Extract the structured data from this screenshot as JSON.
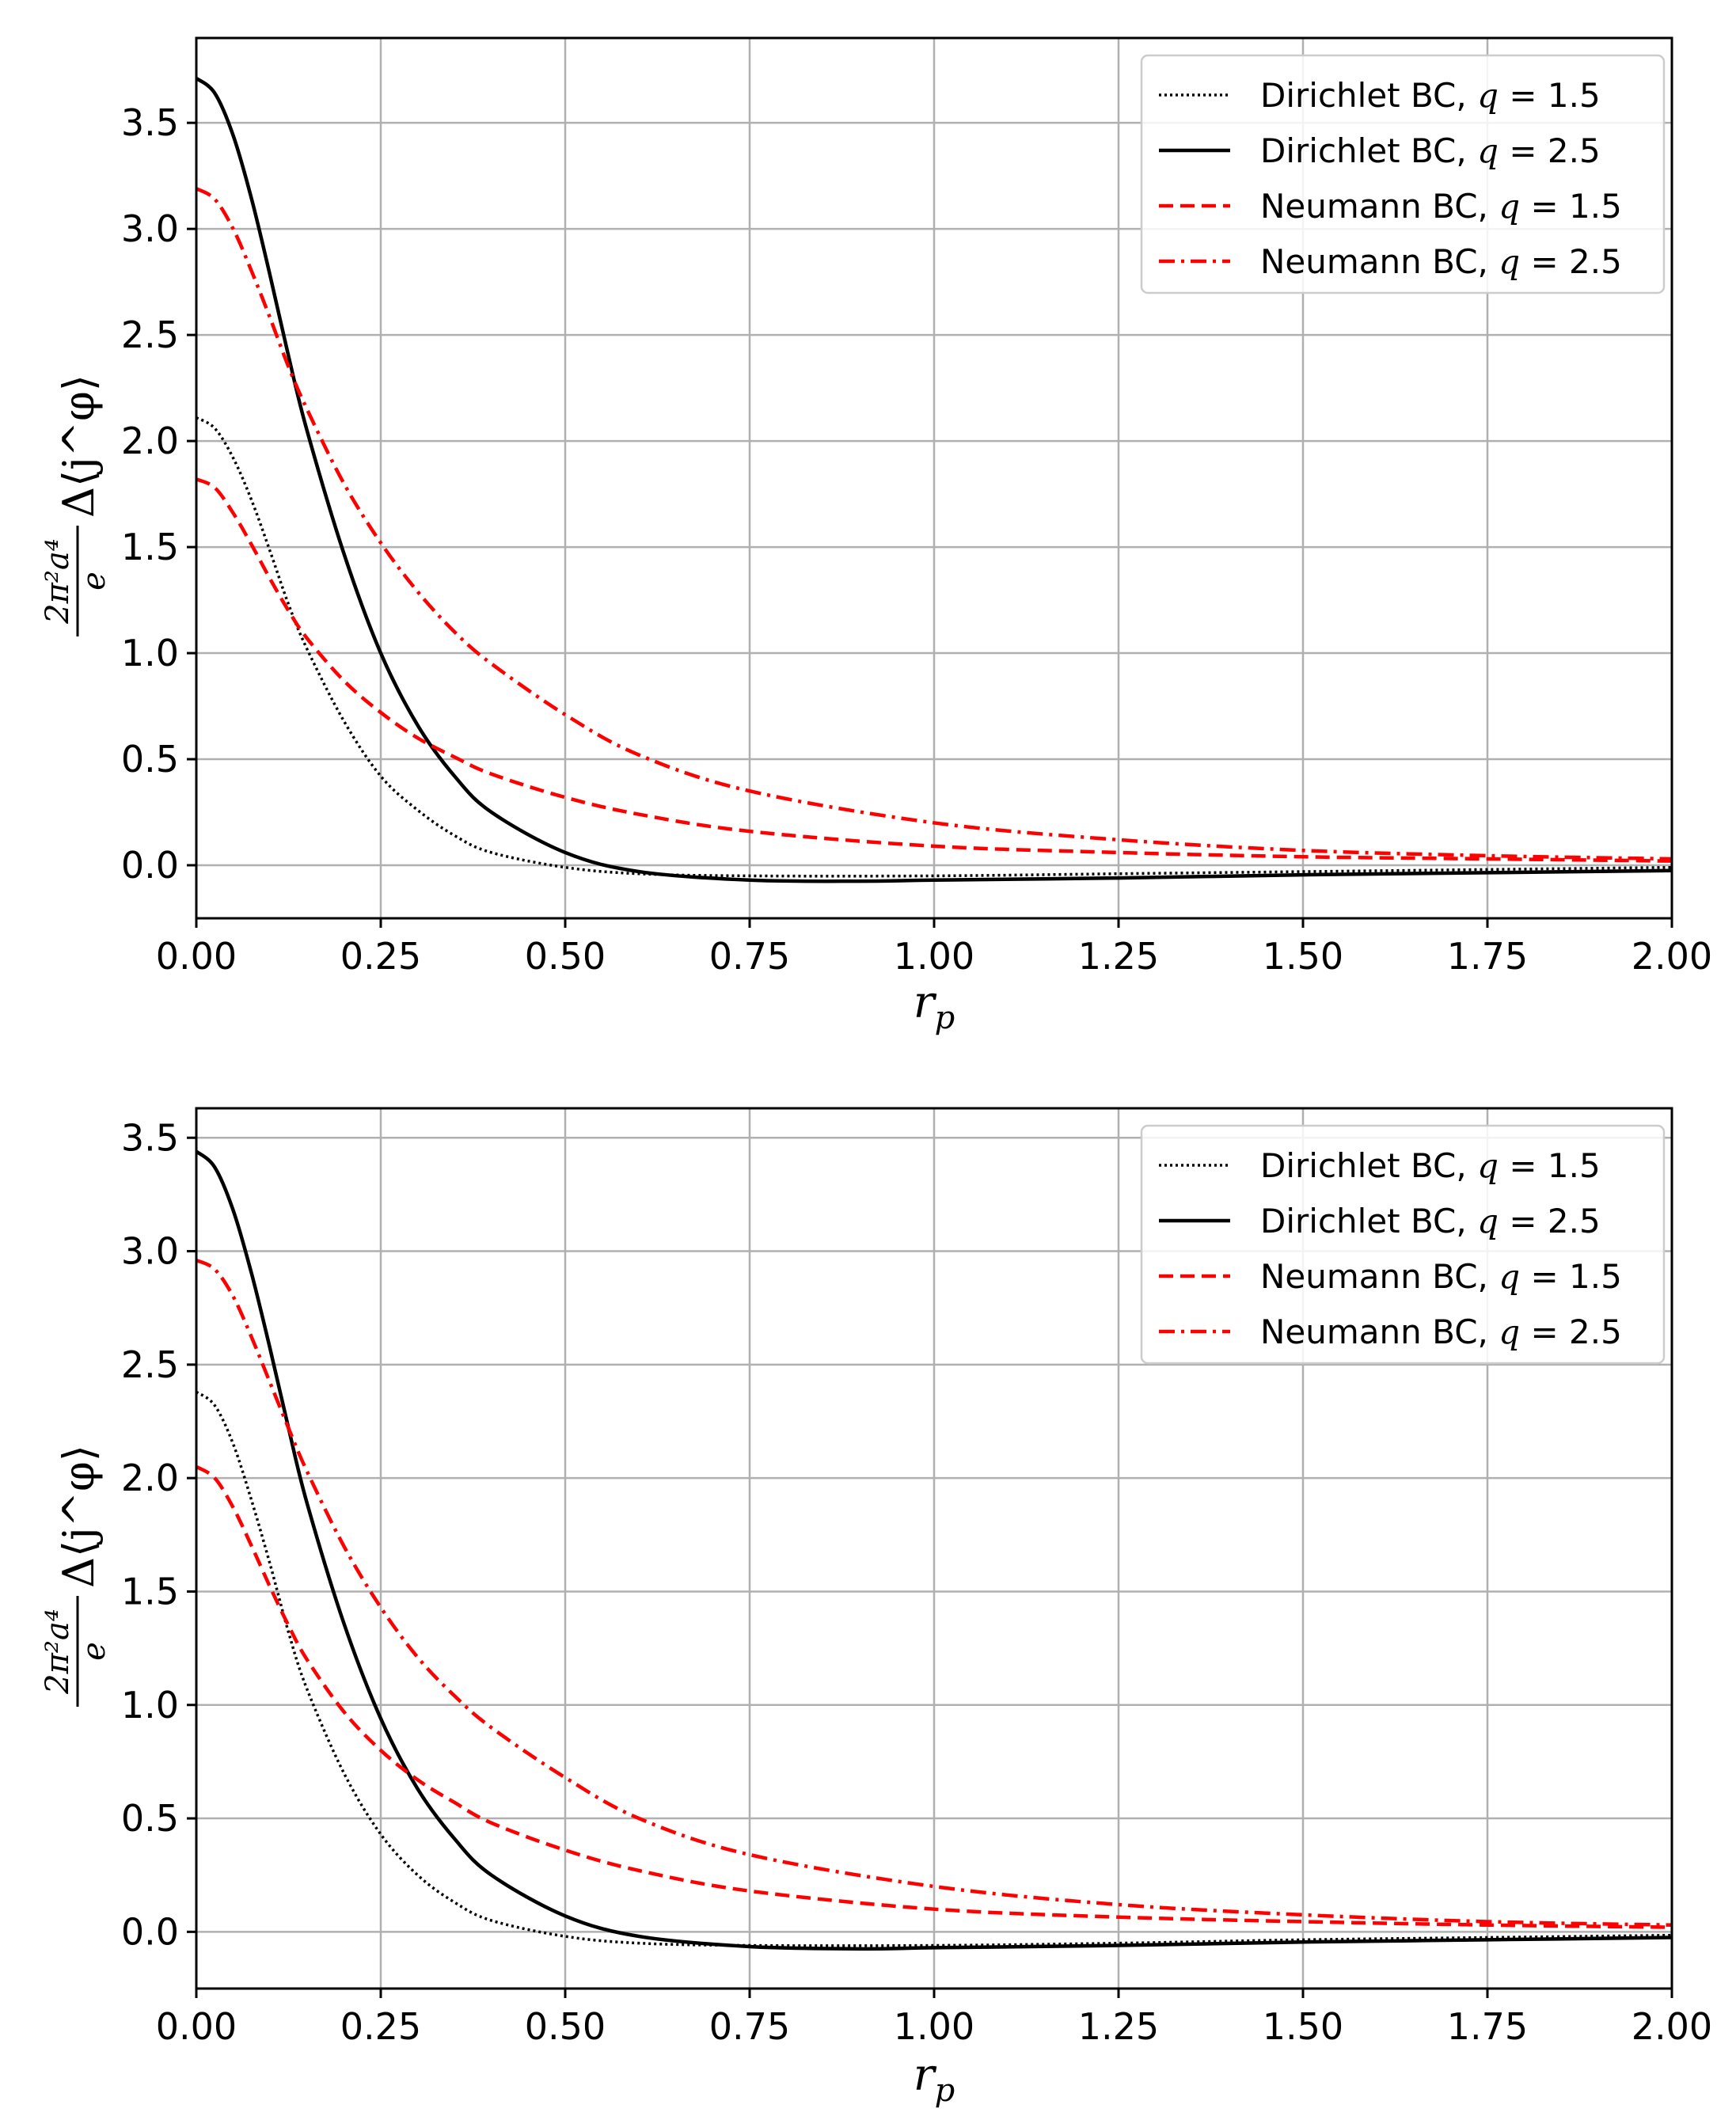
{
  "chart_data": [
    {
      "type": "line",
      "title": "",
      "xlabel": "r_p",
      "ylabel_parts": {
        "numerator": "2π²a⁴",
        "denominator": "e",
        "tail": "Δ⟨j^φ⟩"
      },
      "xlim": [
        0.0,
        2.0
      ],
      "ylim": [
        -0.25,
        3.9
      ],
      "xticks": [
        "0.00",
        "0.25",
        "0.50",
        "0.75",
        "1.00",
        "1.25",
        "1.50",
        "1.75",
        "2.00"
      ],
      "yticks": [
        "0.0",
        "0.5",
        "1.0",
        "1.5",
        "2.0",
        "2.5",
        "3.0",
        "3.5"
      ],
      "xtick_values": [
        0.0,
        0.25,
        0.5,
        0.75,
        1.0,
        1.25,
        1.5,
        1.75,
        2.0
      ],
      "ytick_values": [
        0.0,
        0.5,
        1.0,
        1.5,
        2.0,
        2.5,
        3.0,
        3.5
      ],
      "legend_position": "top-right",
      "series": [
        {
          "name": "Dirichlet BC, q = 1.5",
          "label_prefix": "Dirichlet BC, ",
          "label_var": "q",
          "label_value": " = 1.5",
          "color": "#000000",
          "style": "dotted",
          "x": [
            0,
            0.025,
            0.05,
            0.075,
            0.1,
            0.125,
            0.15,
            0.2,
            0.25,
            0.3,
            0.35,
            0.4,
            0.5,
            0.6,
            0.75,
            1.0,
            1.25,
            1.5,
            1.75,
            2.0
          ],
          "y": [
            2.11,
            2.06,
            1.92,
            1.72,
            1.48,
            1.23,
            1.02,
            0.68,
            0.42,
            0.26,
            0.14,
            0.06,
            -0.01,
            -0.04,
            -0.05,
            -0.05,
            -0.04,
            -0.03,
            -0.02,
            -0.01
          ]
        },
        {
          "name": "Dirichlet BC, q = 2.5",
          "label_prefix": "Dirichlet BC, ",
          "label_var": "q",
          "label_value": " = 2.5",
          "color": "#000000",
          "style": "solid",
          "x": [
            0,
            0.025,
            0.05,
            0.075,
            0.1,
            0.125,
            0.15,
            0.2,
            0.25,
            0.3,
            0.35,
            0.4,
            0.5,
            0.6,
            0.75,
            0.9,
            1.0,
            1.25,
            1.5,
            1.75,
            2.0
          ],
          "y": [
            3.71,
            3.64,
            3.44,
            3.14,
            2.78,
            2.4,
            2.05,
            1.47,
            1.0,
            0.66,
            0.42,
            0.25,
            0.06,
            -0.03,
            -0.07,
            -0.075,
            -0.07,
            -0.06,
            -0.045,
            -0.035,
            -0.025
          ]
        },
        {
          "name": "Neumann BC, q = 1.5",
          "label_prefix": "Neumann BC, ",
          "label_var": "q",
          "label_value": " = 1.5",
          "color": "#ff0000",
          "style": "dashed",
          "x": [
            0,
            0.025,
            0.05,
            0.075,
            0.1,
            0.125,
            0.15,
            0.2,
            0.25,
            0.3,
            0.35,
            0.4,
            0.5,
            0.6,
            0.75,
            1.0,
            1.25,
            1.5,
            1.75,
            2.0
          ],
          "y": [
            1.82,
            1.78,
            1.66,
            1.51,
            1.35,
            1.2,
            1.07,
            0.87,
            0.72,
            0.6,
            0.51,
            0.43,
            0.32,
            0.24,
            0.16,
            0.09,
            0.06,
            0.04,
            0.03,
            0.02
          ]
        },
        {
          "name": "Neumann BC, q = 2.5",
          "label_prefix": "Neumann BC, ",
          "label_var": "q",
          "label_value": " = 2.5",
          "color": "#ff0000",
          "style": "dashdot",
          "x": [
            0,
            0.025,
            0.05,
            0.075,
            0.1,
            0.125,
            0.15,
            0.2,
            0.25,
            0.3,
            0.35,
            0.4,
            0.5,
            0.6,
            0.75,
            1.0,
            1.25,
            1.5,
            1.75,
            2.0
          ],
          "y": [
            3.19,
            3.14,
            3.0,
            2.8,
            2.58,
            2.35,
            2.15,
            1.8,
            1.52,
            1.29,
            1.1,
            0.95,
            0.71,
            0.52,
            0.35,
            0.2,
            0.12,
            0.07,
            0.045,
            0.03
          ]
        }
      ]
    },
    {
      "type": "line",
      "title": "",
      "xlabel": "r_p",
      "ylabel_parts": {
        "numerator": "2π²a⁴",
        "denominator": "e",
        "tail": "Δ⟨j^φ⟩"
      },
      "xlim": [
        0.0,
        2.0
      ],
      "ylim": [
        -0.25,
        3.63
      ],
      "xticks": [
        "0.00",
        "0.25",
        "0.50",
        "0.75",
        "1.00",
        "1.25",
        "1.50",
        "1.75",
        "2.00"
      ],
      "yticks": [
        "0.0",
        "0.5",
        "1.0",
        "1.5",
        "2.0",
        "2.5",
        "3.0",
        "3.5"
      ],
      "xtick_values": [
        0.0,
        0.25,
        0.5,
        0.75,
        1.0,
        1.25,
        1.5,
        1.75,
        2.0
      ],
      "ytick_values": [
        0.0,
        0.5,
        1.0,
        1.5,
        2.0,
        2.5,
        3.0,
        3.5
      ],
      "legend_position": "top-right",
      "series": [
        {
          "name": "Dirichlet BC, q = 1.5",
          "label_prefix": "Dirichlet BC, ",
          "label_var": "q",
          "label_value": " = 1.5",
          "color": "#000000",
          "style": "dotted",
          "x": [
            0,
            0.025,
            0.05,
            0.075,
            0.1,
            0.125,
            0.15,
            0.2,
            0.25,
            0.3,
            0.35,
            0.4,
            0.5,
            0.6,
            0.75,
            1.0,
            1.25,
            1.5,
            1.75,
            2.0
          ],
          "y": [
            2.38,
            2.32,
            2.15,
            1.9,
            1.62,
            1.32,
            1.07,
            0.7,
            0.43,
            0.25,
            0.13,
            0.05,
            -0.02,
            -0.05,
            -0.06,
            -0.06,
            -0.05,
            -0.035,
            -0.025,
            -0.015
          ]
        },
        {
          "name": "Dirichlet BC, q = 2.5",
          "label_prefix": "Dirichlet BC, ",
          "label_var": "q",
          "label_value": " = 2.5",
          "color": "#000000",
          "style": "solid",
          "x": [
            0,
            0.025,
            0.05,
            0.075,
            0.1,
            0.125,
            0.15,
            0.2,
            0.25,
            0.3,
            0.35,
            0.4,
            0.5,
            0.6,
            0.75,
            0.9,
            1.0,
            1.25,
            1.5,
            1.75,
            2.0
          ],
          "y": [
            3.44,
            3.37,
            3.18,
            2.9,
            2.57,
            2.22,
            1.89,
            1.36,
            0.94,
            0.63,
            0.41,
            0.25,
            0.07,
            -0.02,
            -0.065,
            -0.075,
            -0.07,
            -0.06,
            -0.045,
            -0.035,
            -0.025
          ]
        },
        {
          "name": "Neumann BC, q = 1.5",
          "label_prefix": "Neumann BC, ",
          "label_var": "q",
          "label_value": " = 1.5",
          "color": "#ff0000",
          "style": "dashed",
          "x": [
            0,
            0.025,
            0.05,
            0.075,
            0.1,
            0.125,
            0.15,
            0.2,
            0.25,
            0.3,
            0.35,
            0.4,
            0.5,
            0.6,
            0.75,
            1.0,
            1.25,
            1.5,
            1.75,
            2.0
          ],
          "y": [
            2.05,
            2.0,
            1.87,
            1.7,
            1.52,
            1.35,
            1.2,
            0.97,
            0.8,
            0.67,
            0.57,
            0.48,
            0.36,
            0.27,
            0.18,
            0.1,
            0.065,
            0.045,
            0.03,
            0.02
          ]
        },
        {
          "name": "Neumann BC, q = 2.5",
          "label_prefix": "Neumann BC, ",
          "label_var": "q",
          "label_value": " = 2.5",
          "color": "#ff0000",
          "style": "dashdot",
          "x": [
            0,
            0.025,
            0.05,
            0.075,
            0.1,
            0.125,
            0.15,
            0.2,
            0.25,
            0.3,
            0.35,
            0.4,
            0.5,
            0.6,
            0.75,
            1.0,
            1.25,
            1.5,
            1.75,
            2.0
          ],
          "y": [
            2.96,
            2.92,
            2.8,
            2.62,
            2.42,
            2.22,
            2.03,
            1.7,
            1.43,
            1.21,
            1.04,
            0.9,
            0.68,
            0.5,
            0.34,
            0.2,
            0.12,
            0.075,
            0.045,
            0.03
          ]
        }
      ]
    }
  ]
}
